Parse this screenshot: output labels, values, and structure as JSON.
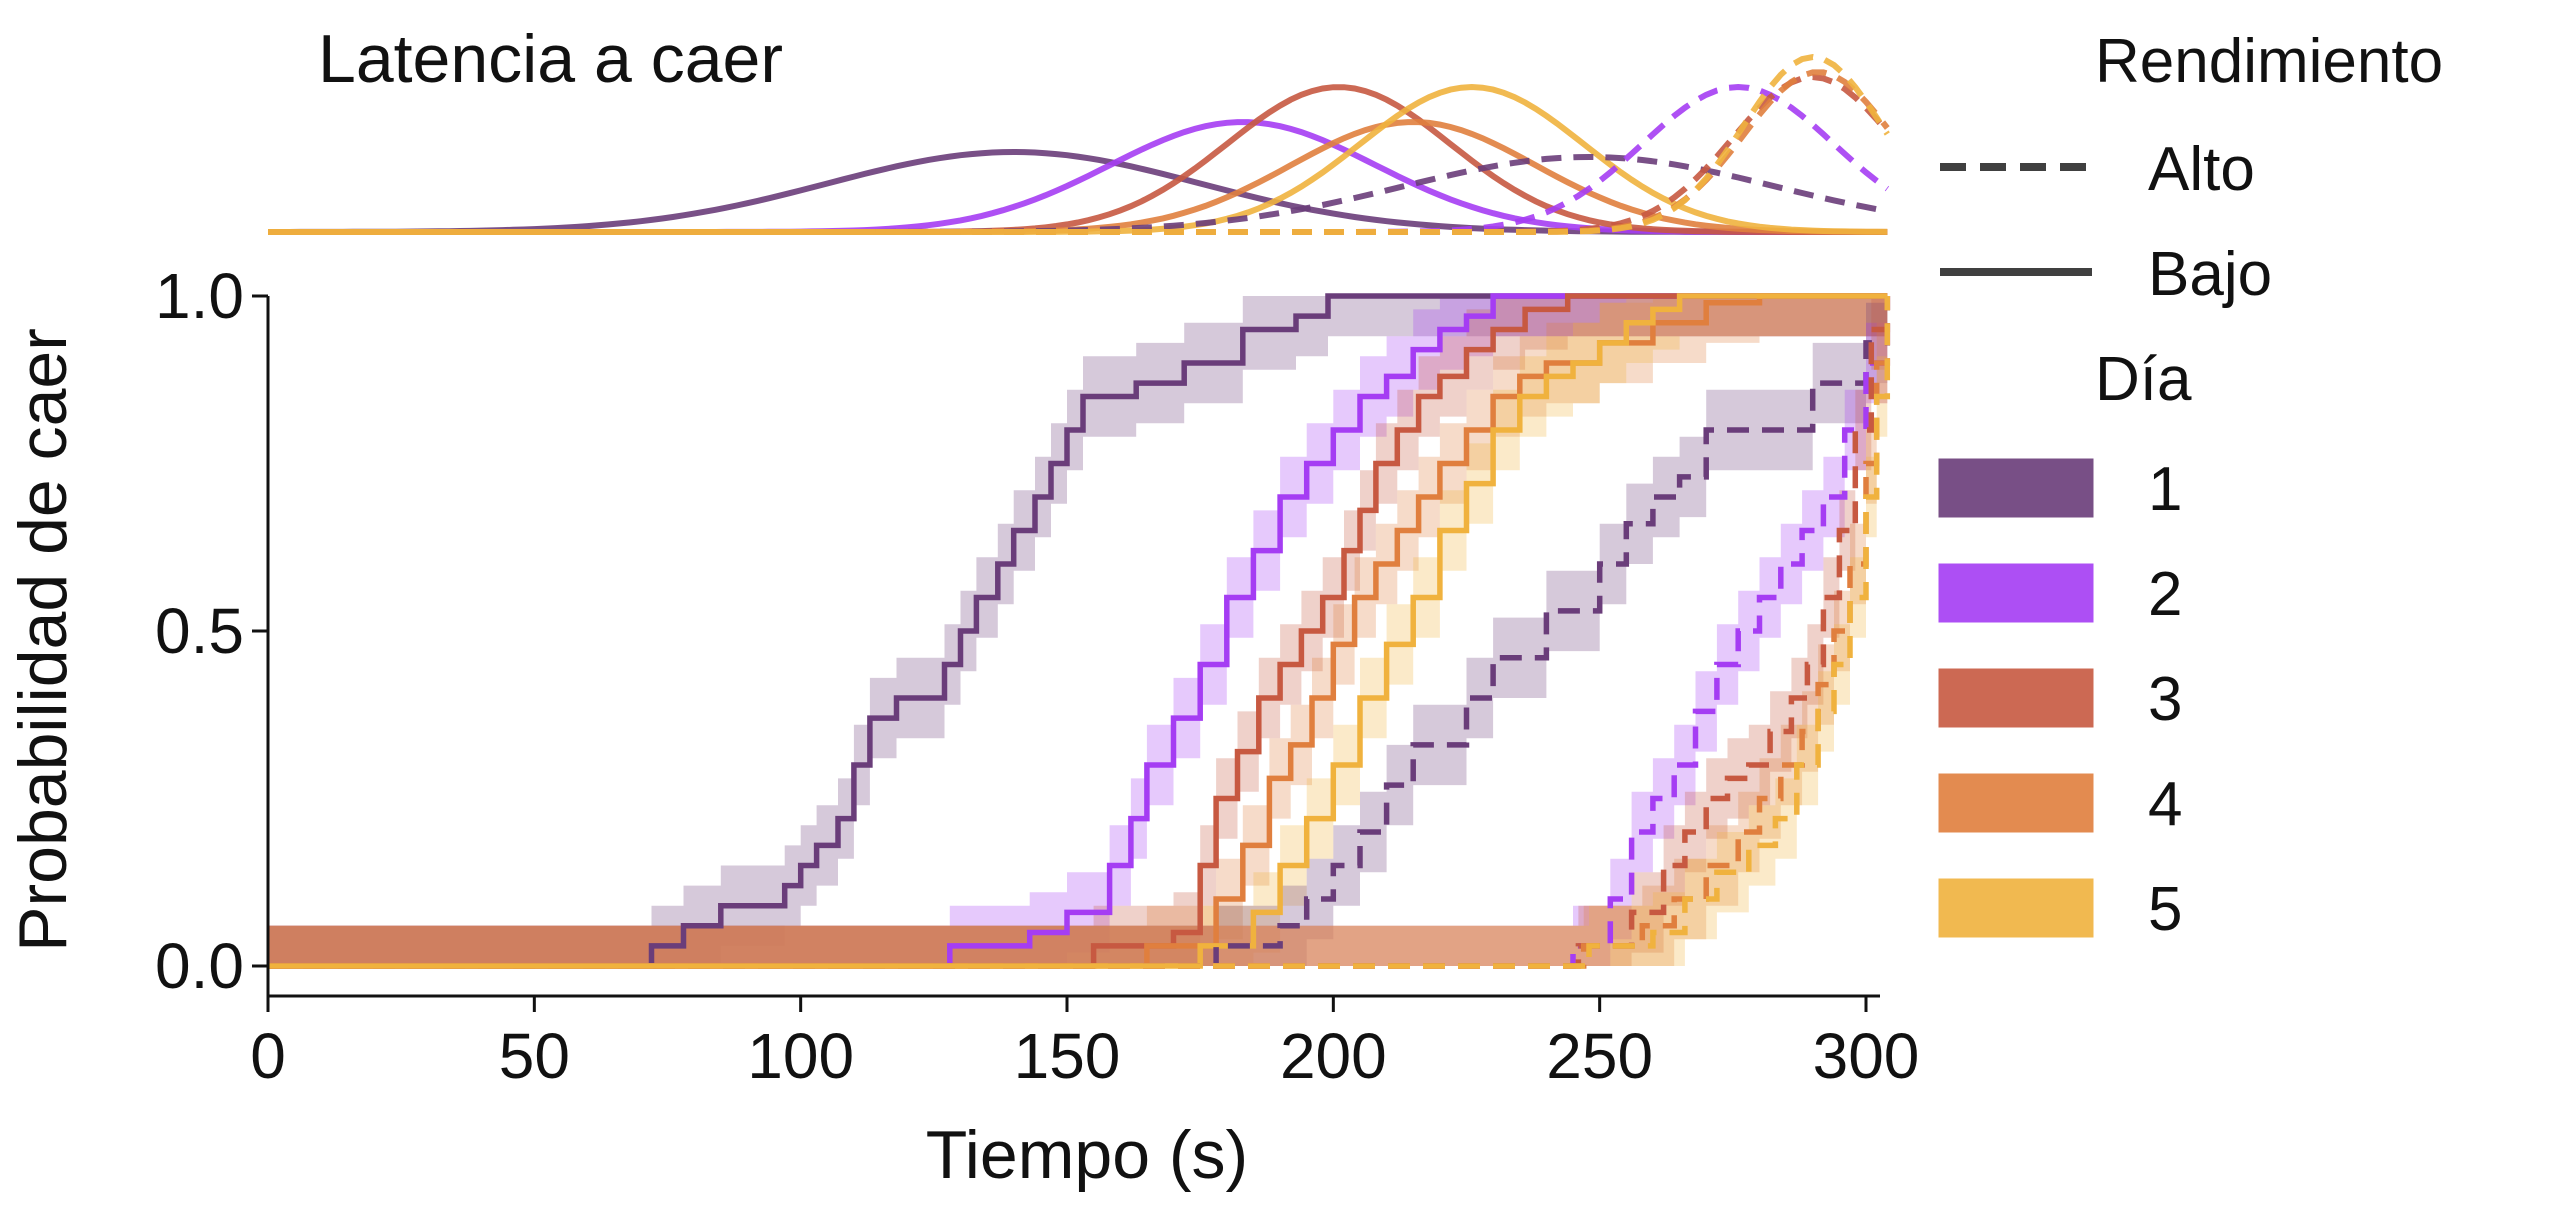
{
  "chart_data": {
    "type": "line",
    "title": "Latencia a caer",
    "xlabel": "Tiempo (s)",
    "ylabel": "Probabilidad de caer",
    "xlim": [
      0,
      300
    ],
    "ylim": [
      0,
      1
    ],
    "xticks": [
      "0",
      "50",
      "100",
      "150",
      "200",
      "250",
      "300"
    ],
    "yticks": [
      "0.0",
      "0.5",
      "1.0"
    ],
    "grid": false,
    "legend": {
      "position": "right",
      "style_title": "Rendimiento",
      "styles": [
        {
          "label": "Alto",
          "dash": "dashed"
        },
        {
          "label": "Bajo",
          "dash": "solid"
        }
      ],
      "color_title": "Día",
      "colors": [
        {
          "label": "1",
          "color": "#6a3d7a"
        },
        {
          "label": "2",
          "color": "#a53df3"
        },
        {
          "label": "3",
          "color": "#c75941"
        },
        {
          "label": "4",
          "color": "#e07f3e"
        },
        {
          "label": "5",
          "color": "#f0b23e"
        }
      ]
    },
    "density_panel": {
      "description_type": "gaussian",
      "series": [
        {
          "day": "1",
          "performance": "Bajo",
          "mean": 140,
          "sd": 35,
          "amplitude": 0.8
        },
        {
          "day": "2",
          "performance": "Bajo",
          "mean": 183,
          "sd": 25,
          "amplitude": 1.1
        },
        {
          "day": "3",
          "performance": "Bajo",
          "mean": 201,
          "sd": 21,
          "amplitude": 1.45
        },
        {
          "day": "4",
          "performance": "Bajo",
          "mean": 215,
          "sd": 23,
          "amplitude": 1.1
        },
        {
          "day": "5",
          "performance": "Bajo",
          "mean": 226,
          "sd": 21,
          "amplitude": 1.45
        },
        {
          "day": "1",
          "performance": "Alto",
          "mean": 248,
          "sd": 35,
          "amplitude": 0.75
        },
        {
          "day": "2",
          "performance": "Alto",
          "mean": 276,
          "sd": 18,
          "amplitude": 1.45
        },
        {
          "day": "3",
          "performance": "Alto",
          "mean": 290,
          "sd": 15,
          "amplitude": 1.55
        },
        {
          "day": "4",
          "performance": "Alto",
          "mean": 291,
          "sd": 14,
          "amplitude": 1.6
        },
        {
          "day": "5",
          "performance": "Alto",
          "mean": 290,
          "sd": 13,
          "amplitude": 1.75
        }
      ]
    },
    "series": [
      {
        "day": "1",
        "performance": "Bajo",
        "x": [
          0,
          72,
          78,
          85,
          92,
          97,
          100,
          103,
          107,
          110,
          113,
          118,
          123,
          127,
          130,
          133,
          137,
          140,
          144,
          147,
          150,
          153,
          158,
          163,
          168,
          172,
          177,
          183,
          187,
          193,
          199,
          205,
          304
        ],
        "y": [
          0,
          0.03,
          0.06,
          0.09,
          0.09,
          0.12,
          0.15,
          0.18,
          0.22,
          0.3,
          0.37,
          0.4,
          0.4,
          0.45,
          0.5,
          0.55,
          0.6,
          0.65,
          0.7,
          0.75,
          0.8,
          0.85,
          0.85,
          0.87,
          0.87,
          0.9,
          0.9,
          0.95,
          0.95,
          0.97,
          1.0,
          1.0,
          1.0
        ]
      },
      {
        "day": "2",
        "performance": "Bajo",
        "x": [
          0,
          128,
          143,
          150,
          158,
          162,
          165,
          170,
          175,
          180,
          185,
          190,
          195,
          200,
          205,
          210,
          215,
          220,
          225,
          230,
          235,
          304
        ],
        "y": [
          0,
          0.03,
          0.05,
          0.08,
          0.15,
          0.22,
          0.3,
          0.37,
          0.45,
          0.55,
          0.62,
          0.7,
          0.75,
          0.8,
          0.85,
          0.88,
          0.92,
          0.95,
          0.97,
          1.0,
          1.0,
          1.0
        ]
      },
      {
        "day": "3",
        "performance": "Bajo",
        "x": [
          0,
          155,
          170,
          175,
          178,
          182,
          186,
          190,
          194,
          198,
          202,
          205,
          208,
          212,
          216,
          220,
          225,
          230,
          236,
          244,
          304
        ],
        "y": [
          0,
          0.03,
          0.05,
          0.15,
          0.25,
          0.32,
          0.4,
          0.45,
          0.5,
          0.55,
          0.62,
          0.68,
          0.75,
          0.8,
          0.85,
          0.88,
          0.92,
          0.95,
          0.98,
          1.0,
          1.0
        ]
      },
      {
        "day": "4",
        "performance": "Bajo",
        "x": [
          0,
          165,
          178,
          183,
          188,
          192,
          196,
          200,
          204,
          208,
          212,
          216,
          220,
          225,
          230,
          235,
          240,
          250,
          260,
          270,
          280,
          304
        ],
        "y": [
          0,
          0.03,
          0.1,
          0.18,
          0.28,
          0.33,
          0.4,
          0.48,
          0.55,
          0.6,
          0.65,
          0.7,
          0.75,
          0.8,
          0.85,
          0.88,
          0.9,
          0.93,
          0.96,
          0.99,
          1.0,
          1.0
        ]
      },
      {
        "day": "5",
        "performance": "Bajo",
        "x": [
          0,
          175,
          185,
          190,
          195,
          200,
          205,
          210,
          215,
          220,
          225,
          230,
          235,
          240,
          245,
          250,
          255,
          260,
          265,
          304
        ],
        "y": [
          0,
          0.03,
          0.08,
          0.15,
          0.22,
          0.3,
          0.4,
          0.48,
          0.55,
          0.65,
          0.72,
          0.8,
          0.85,
          0.88,
          0.9,
          0.93,
          0.96,
          0.98,
          1.0,
          1.0
        ]
      },
      {
        "day": "1",
        "performance": "Alto",
        "x": [
          0,
          178,
          190,
          195,
          200,
          205,
          210,
          215,
          220,
          225,
          230,
          235,
          240,
          245,
          250,
          255,
          260,
          265,
          270,
          280,
          290,
          300,
          304
        ],
        "y": [
          0,
          0.03,
          0.06,
          0.1,
          0.15,
          0.2,
          0.27,
          0.33,
          0.33,
          0.4,
          0.46,
          0.46,
          0.53,
          0.53,
          0.6,
          0.66,
          0.7,
          0.73,
          0.8,
          0.8,
          0.87,
          0.93,
          1.0
        ]
      },
      {
        "day": "2",
        "performance": "Alto",
        "x": [
          0,
          245,
          252,
          256,
          260,
          264,
          268,
          272,
          276,
          280,
          284,
          288,
          292,
          296,
          300,
          304
        ],
        "y": [
          0,
          0.03,
          0.1,
          0.2,
          0.25,
          0.3,
          0.38,
          0.45,
          0.5,
          0.55,
          0.6,
          0.65,
          0.7,
          0.8,
          0.9,
          1.0
        ]
      },
      {
        "day": "3",
        "performance": "Alto",
        "x": [
          0,
          246,
          256,
          262,
          266,
          270,
          274,
          278,
          282,
          286,
          289,
          292,
          295,
          298,
          301,
          304
        ],
        "y": [
          0,
          0.03,
          0.08,
          0.15,
          0.2,
          0.25,
          0.28,
          0.3,
          0.35,
          0.4,
          0.45,
          0.55,
          0.65,
          0.8,
          0.95,
          1.0
        ]
      },
      {
        "day": "4",
        "performance": "Alto",
        "x": [
          0,
          247,
          258,
          264,
          270,
          276,
          280,
          284,
          288,
          291,
          294,
          297,
          300,
          302,
          304
        ],
        "y": [
          0,
          0.03,
          0.06,
          0.1,
          0.15,
          0.2,
          0.25,
          0.3,
          0.35,
          0.42,
          0.5,
          0.6,
          0.75,
          0.9,
          1.0
        ]
      },
      {
        "day": "5",
        "performance": "Alto",
        "x": [
          0,
          248,
          260,
          266,
          272,
          278,
          283,
          287,
          291,
          294,
          297,
          300,
          302,
          304
        ],
        "y": [
          0,
          0.03,
          0.05,
          0.1,
          0.14,
          0.18,
          0.22,
          0.3,
          0.38,
          0.45,
          0.55,
          0.7,
          0.85,
          1.0
        ]
      }
    ]
  }
}
